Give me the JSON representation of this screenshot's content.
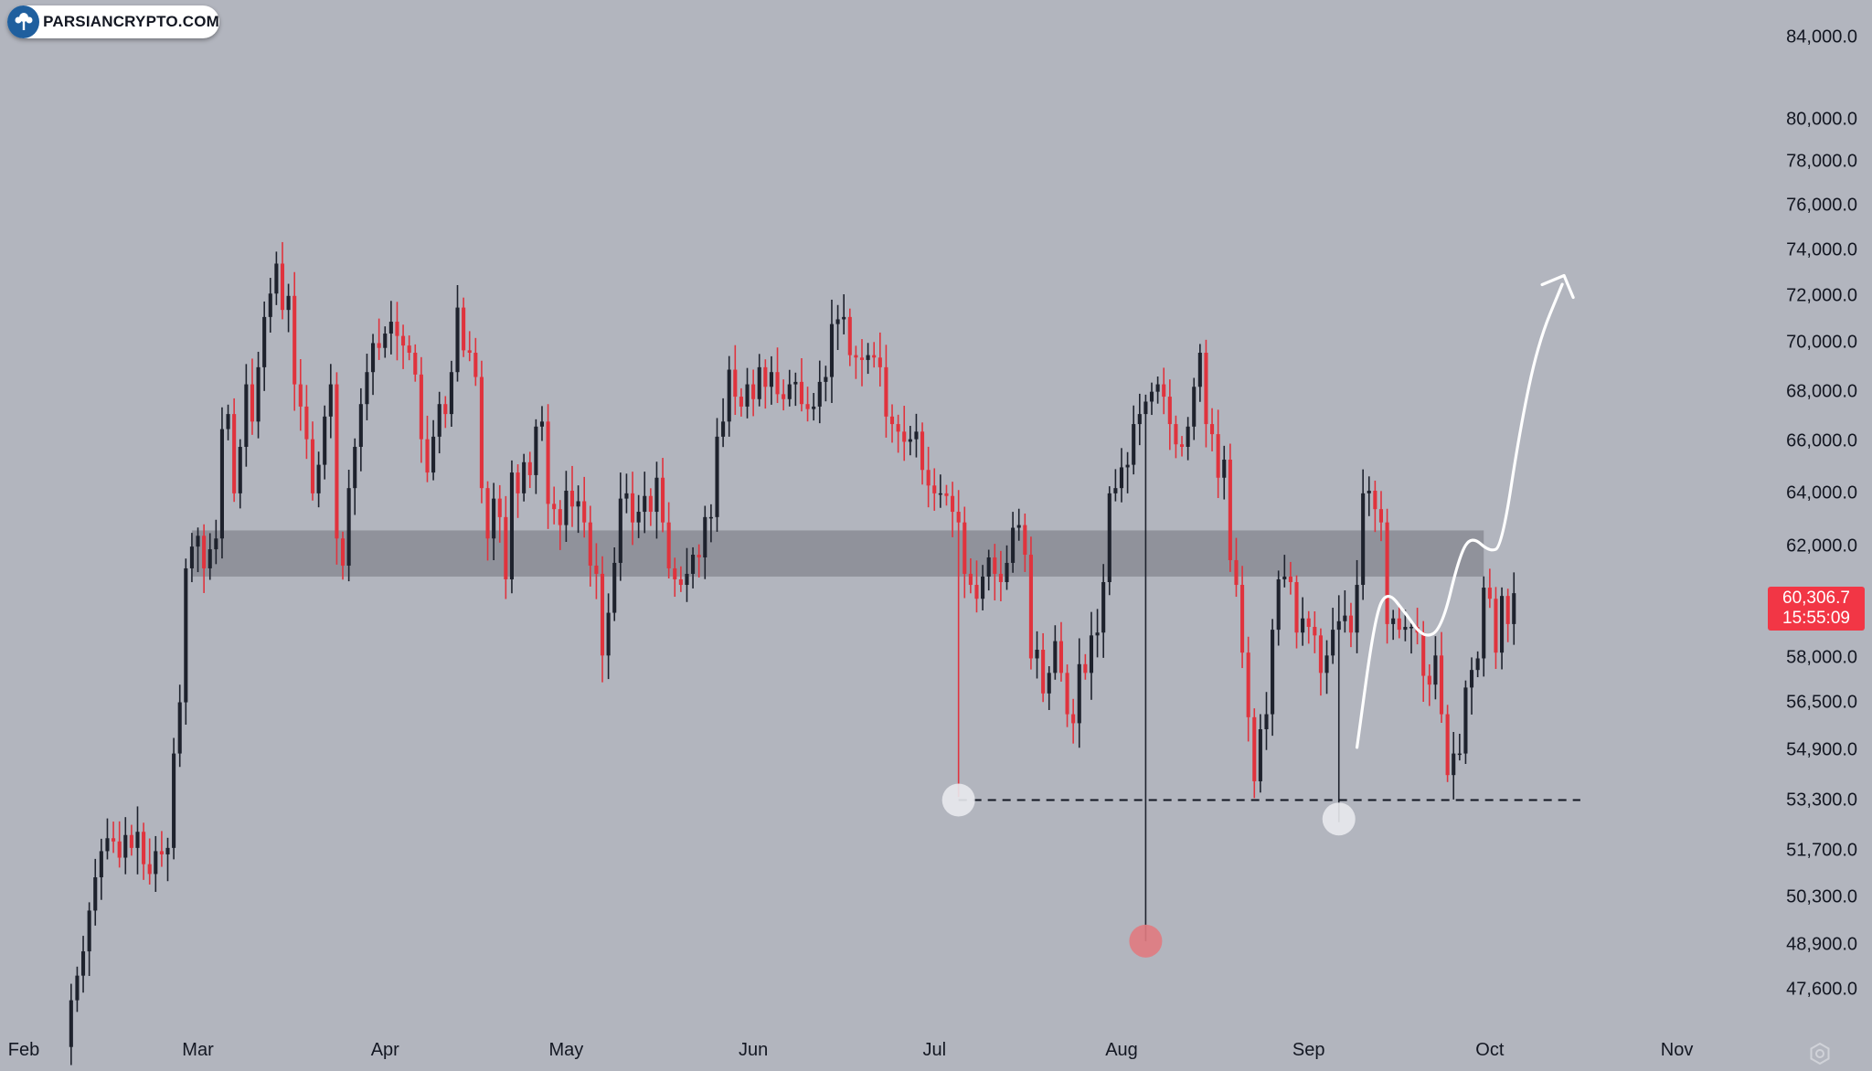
{
  "logo": {
    "text": "PARSIANCRYPTO.COM",
    "icon": "tree-icon"
  },
  "price_badge": {
    "price": "60,306.7",
    "countdown": "15:55:09",
    "color": "#f23645"
  },
  "colors": {
    "background": "#b2b5be",
    "up_candle": "#1e222d",
    "down_candle": "#e0333d",
    "zone": "#8a8c95",
    "projection": "#ffffff"
  },
  "chart_data": {
    "type": "candlestick",
    "title": "",
    "xlabel": "",
    "ylabel": "",
    "y_scale": "log",
    "ylim": [
      46500,
      86000
    ],
    "xlim": [
      "2024-02-01",
      "2024-11-05"
    ],
    "y_ticks": [
      "84,000.0",
      "80,000.0",
      "78,000.0",
      "76,000.0",
      "74,000.0",
      "72,000.0",
      "70,000.0",
      "68,000.0",
      "66,000.0",
      "64,000.0",
      "62,000.0",
      "58,000.0",
      "56,500.0",
      "54,900.0",
      "53,300.0",
      "51,700.0",
      "50,300.0",
      "48,900.0",
      "47,600.0"
    ],
    "y_tick_values": [
      84000,
      80000,
      78000,
      76000,
      74000,
      72000,
      70000,
      68000,
      66000,
      64000,
      62000,
      58000,
      56500,
      54900,
      53300,
      51700,
      50300,
      48900,
      47600
    ],
    "x_ticks": [
      {
        "label": "Feb",
        "date": "2024-02-01"
      },
      {
        "label": "Mar",
        "date": "2024-03-01"
      },
      {
        "label": "Apr",
        "date": "2024-04-01"
      },
      {
        "label": "May",
        "date": "2024-05-01"
      },
      {
        "label": "Jun",
        "date": "2024-06-01"
      },
      {
        "label": "Jul",
        "date": "2024-07-01"
      },
      {
        "label": "Aug",
        "date": "2024-08-01"
      },
      {
        "label": "Sep",
        "date": "2024-09-01"
      },
      {
        "label": "Oct",
        "date": "2024-10-01"
      },
      {
        "label": "Nov",
        "date": "2024-11-01"
      }
    ],
    "grid": false,
    "last_price": 60306.7,
    "series": [
      {
        "start_date": "2024-02-08",
        "closes": [
          46000,
          47300,
          48000,
          48700,
          49900,
          50900,
          51700,
          52100,
          52000,
          51500,
          52200,
          51800,
          52300,
          51300,
          51000,
          51700,
          51600,
          51800,
          54800,
          56500,
          61200,
          62000,
          62400,
          61200,
          61900,
          62300,
          66500,
          67100,
          64000,
          65800,
          68300,
          66800,
          69000,
          71100,
          72100,
          73400,
          71400,
          72000,
          68300,
          67400,
          66100,
          64000,
          65100,
          67000,
          68300,
          62300,
          61300,
          64200,
          65800,
          67500,
          68800,
          70000,
          69800,
          70400,
          70900,
          70300,
          69900,
          69600,
          68700,
          66100,
          64800,
          66200,
          67500,
          67100,
          68800,
          71500,
          69700,
          69600,
          68600,
          64200,
          62300,
          63800,
          63100,
          60800,
          64800,
          64000,
          65200,
          64700,
          66600,
          66800,
          63600,
          63400,
          62800,
          64100,
          63500,
          63700,
          62900,
          61300,
          61000,
          58100,
          59600,
          61400,
          63800,
          64000,
          62900,
          63300,
          63900,
          63300,
          64600,
          62900,
          61200,
          60800,
          60600,
          61000,
          61700,
          61600,
          63100,
          63100,
          66200,
          66800,
          68900,
          67800,
          67400,
          68300,
          67700,
          69000,
          68200,
          68800,
          67900,
          67700,
          68300,
          68400,
          67500,
          67300,
          67400,
          68400,
          68600,
          70800,
          71000,
          71100,
          69500,
          69400,
          69300,
          69500,
          69400,
          69000,
          67000,
          66700,
          66400,
          66000,
          66100,
          66400,
          64900,
          64300,
          64000,
          64000,
          63900,
          63300,
          62900,
          61000,
          60600,
          60100,
          60900,
          61600,
          61000,
          60700,
          61400,
          62700,
          62800,
          61700,
          58000,
          58300,
          56800,
          57500,
          58600,
          57500,
          56100,
          55800,
          57800,
          57500,
          58800,
          58900,
          60700,
          64000,
          64200,
          65000,
          65100,
          66700,
          67100,
          67600,
          68000,
          68300,
          67800,
          66700,
          65900,
          65800,
          66600,
          68200,
          69600,
          66700,
          66300,
          64600,
          65300,
          61500,
          60600,
          58200,
          56000,
          53900,
          55600,
          56100,
          59000,
          60800,
          60900,
          60700,
          58900,
          59400,
          59100,
          58800,
          57500,
          58100,
          59000,
          59300,
          59500,
          58900,
          60600,
          64000,
          64100,
          63400,
          62900,
          59200,
          59400,
          59000,
          59100,
          59100,
          58900,
          57400,
          57100,
          58100,
          56100,
          54100,
          54800,
          54800,
          57000,
          57600,
          58000,
          60500,
          60100,
          58200,
          60200,
          59200,
          60300
        ]
      }
    ]
  },
  "annotations": {
    "support_line_value": 53300,
    "support_line_start": "2024-07-05",
    "support_line_end": "2024-10-16",
    "resistance_zone": [
      60900,
      62600
    ],
    "zone_start": "2024-02-29",
    "zone_end": "2024-09-30",
    "markers": [
      {
        "date": "2024-07-05",
        "value": 53300,
        "color": "#e8e9ed"
      },
      {
        "date": "2024-08-05",
        "value": 49000,
        "color": "#e07a80"
      },
      {
        "date": "2024-09-06",
        "value": 52700,
        "color": "#e8e9ed"
      }
    ],
    "projection_path": [
      {
        "date": "2024-09-09",
        "value": 55000
      },
      {
        "date": "2024-09-12",
        "value": 59500
      },
      {
        "date": "2024-09-14",
        "value": 60400
      },
      {
        "date": "2024-09-17",
        "value": 59600
      },
      {
        "date": "2024-09-20",
        "value": 58700
      },
      {
        "date": "2024-09-23",
        "value": 59000
      },
      {
        "date": "2024-09-26",
        "value": 61700
      },
      {
        "date": "2024-09-28",
        "value": 62400
      },
      {
        "date": "2024-10-01",
        "value": 61800
      },
      {
        "date": "2024-10-03",
        "value": 62000
      },
      {
        "date": "2024-10-06",
        "value": 66500
      },
      {
        "date": "2024-10-09",
        "value": 70000
      },
      {
        "date": "2024-10-13",
        "value": 72500
      }
    ],
    "arrow_head": {
      "date": "2024-10-13",
      "value": 72800
    }
  }
}
